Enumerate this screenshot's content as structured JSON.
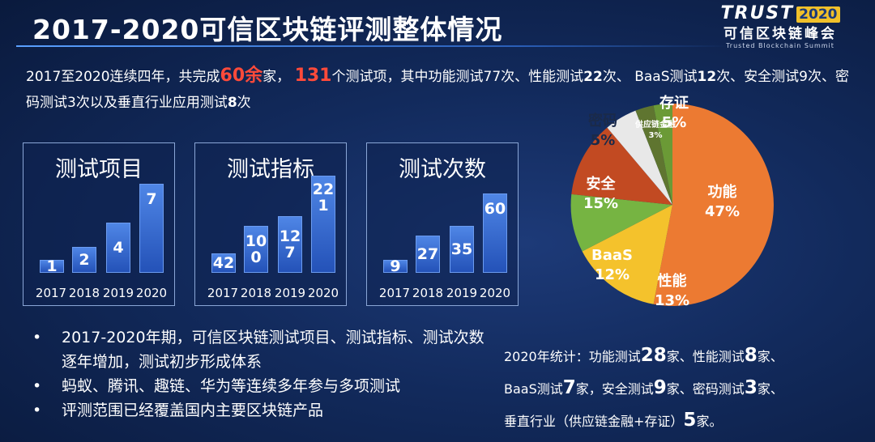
{
  "title": "2017-2020可信区块链评测整体情况",
  "logo": {
    "trust": "TRUST",
    "year": "2020",
    "cn": "可信区块链峰会",
    "en": "Trusted Blockchain Summit"
  },
  "summary": {
    "p1": "2017至2020连续四年，共完成",
    "h1": "60余",
    "p2": "家，",
    "h2": "131",
    "p3": "个测试项，其中功能测试77次、性能测试",
    "b1": "22",
    "p4": "次、 BaaS测试",
    "b2": "12",
    "p5": "次、安全测试9次、密码测试3次以及垂直行业应用测试",
    "b3": "8",
    "p6": "次"
  },
  "panels": [
    {
      "title": "测试项目",
      "values": [
        "1",
        "2",
        "4",
        "7"
      ]
    },
    {
      "title": "测试指标",
      "values": [
        "42",
        "10\n0",
        "12\n7",
        "22\n1"
      ]
    },
    {
      "title": "测试次数",
      "values": [
        "9",
        "27",
        "35",
        "60"
      ]
    }
  ],
  "years": [
    "2017",
    "2018",
    "2019",
    "2020"
  ],
  "pie_labels": [
    {
      "name": "功能",
      "pct": "47%"
    },
    {
      "name": "性能",
      "pct": "13%"
    },
    {
      "name": "BaaS",
      "pct": "12%"
    },
    {
      "name": "安全",
      "pct": "15%"
    },
    {
      "name": "密码",
      "pct": "5%"
    },
    {
      "name": "供应链金融",
      "pct": "3%"
    },
    {
      "name": "存证",
      "pct": "5%"
    }
  ],
  "bullets": [
    "2017-2020年期，可信区块链测试项目、测试指标、测试次数逐年增加，测试初步形成体系",
    "蚂蚁、腾讯、趣链、华为等连续多年参与多项测试",
    "评测范围已经覆盖国内主要区块链产品"
  ],
  "stats": {
    "l1a": "2020年统计：功能测试",
    "l1b": "28",
    "l1c": "家、性能测试",
    "l1d": "8",
    "l1e": "家、",
    "l2a": "BaaS测试",
    "l2b": "7",
    "l2c": "家，安全测试",
    "l2d": "9",
    "l2e": "家、密码测试",
    "l2f": "3",
    "l2g": "家、",
    "l3a": "垂直行业（供应链金融+存证）",
    "l3b": "5",
    "l3c": "家。"
  },
  "colors": {
    "bar": "#3568d0",
    "func": "#ec7a32",
    "perf": "#f4c22c",
    "baas": "#76b442",
    "sec": "#c24a22",
    "crypto": "#6e7b3a",
    "supply": "#4a6a2a",
    "cert": "#5c8a2e"
  }
}
